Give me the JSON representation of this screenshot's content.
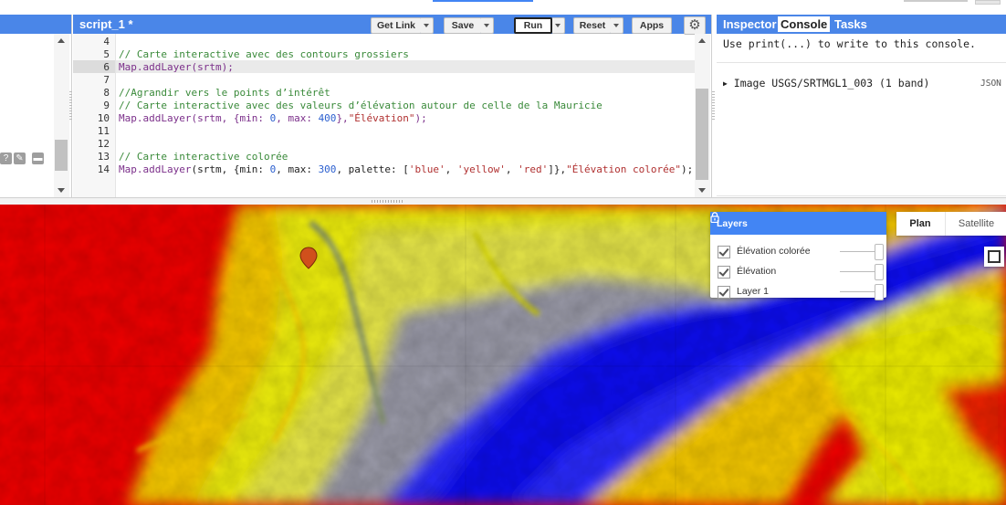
{
  "editor": {
    "script_tab": "script_1 *",
    "buttons": {
      "get_link": "Get Link",
      "save": "Save",
      "run": "Run",
      "reset": "Reset",
      "apps": "Apps"
    },
    "line_numbers": [
      "4",
      "5",
      "6",
      "7",
      "8",
      "9",
      "10",
      "11",
      "12",
      "13",
      "14"
    ],
    "code": {
      "l5": "// Carte interactive avec des contours grossiers",
      "l6_fn": "Map.addLayer",
      "l6_rest": "(srtm);",
      "l8": "//Agrandir vers le points d’intérêt",
      "l9": "// Carte interactive avec des valeurs d’élévation autour de celle de la Mauricie",
      "l10_fn": "Map.addLayer",
      "l10_a": "(srtm, {min: ",
      "l10_n1": "0",
      "l10_b": ", max: ",
      "l10_n2": "400",
      "l10_c": "},",
      "l10_s": "\"Élévation\"",
      "l10_d": ");",
      "l13": "// Carte interactive colorée",
      "l14_fn": "Map.addLayer",
      "l14_a": "(srtm, {min: ",
      "l14_n1": "0",
      "l14_b": ", max: ",
      "l14_n2": "300",
      "l14_c": ", palette: [",
      "l14_s1": "'blue'",
      "l14_comma1": ", ",
      "l14_s2": "'yellow'",
      "l14_comma2": ", ",
      "l14_s3": "'red'",
      "l14_d": "]},",
      "l14_s4": "\"Élévation colorée\"",
      "l14_e": ");"
    }
  },
  "right_panel": {
    "tabs": [
      "Inspector",
      "Console",
      "Tasks"
    ],
    "active_tab": "Console",
    "console_hint": "Use print(...) to write to this console.",
    "console_entry": "Image USGS/SRTMGL1_003 (1 band)",
    "json_link": "JSON"
  },
  "map": {
    "layers_title": "Layers",
    "layers": [
      {
        "name": "Élévation colorée",
        "checked": true
      },
      {
        "name": "Élévation",
        "checked": true
      },
      {
        "name": "Layer 1",
        "checked": true
      }
    ],
    "map_types": [
      "Plan",
      "Satellite"
    ],
    "active_map_type": "Plan",
    "palette": {
      "low": "#1a1aff",
      "mid": "#e8e800",
      "high": "#ee0000"
    }
  }
}
